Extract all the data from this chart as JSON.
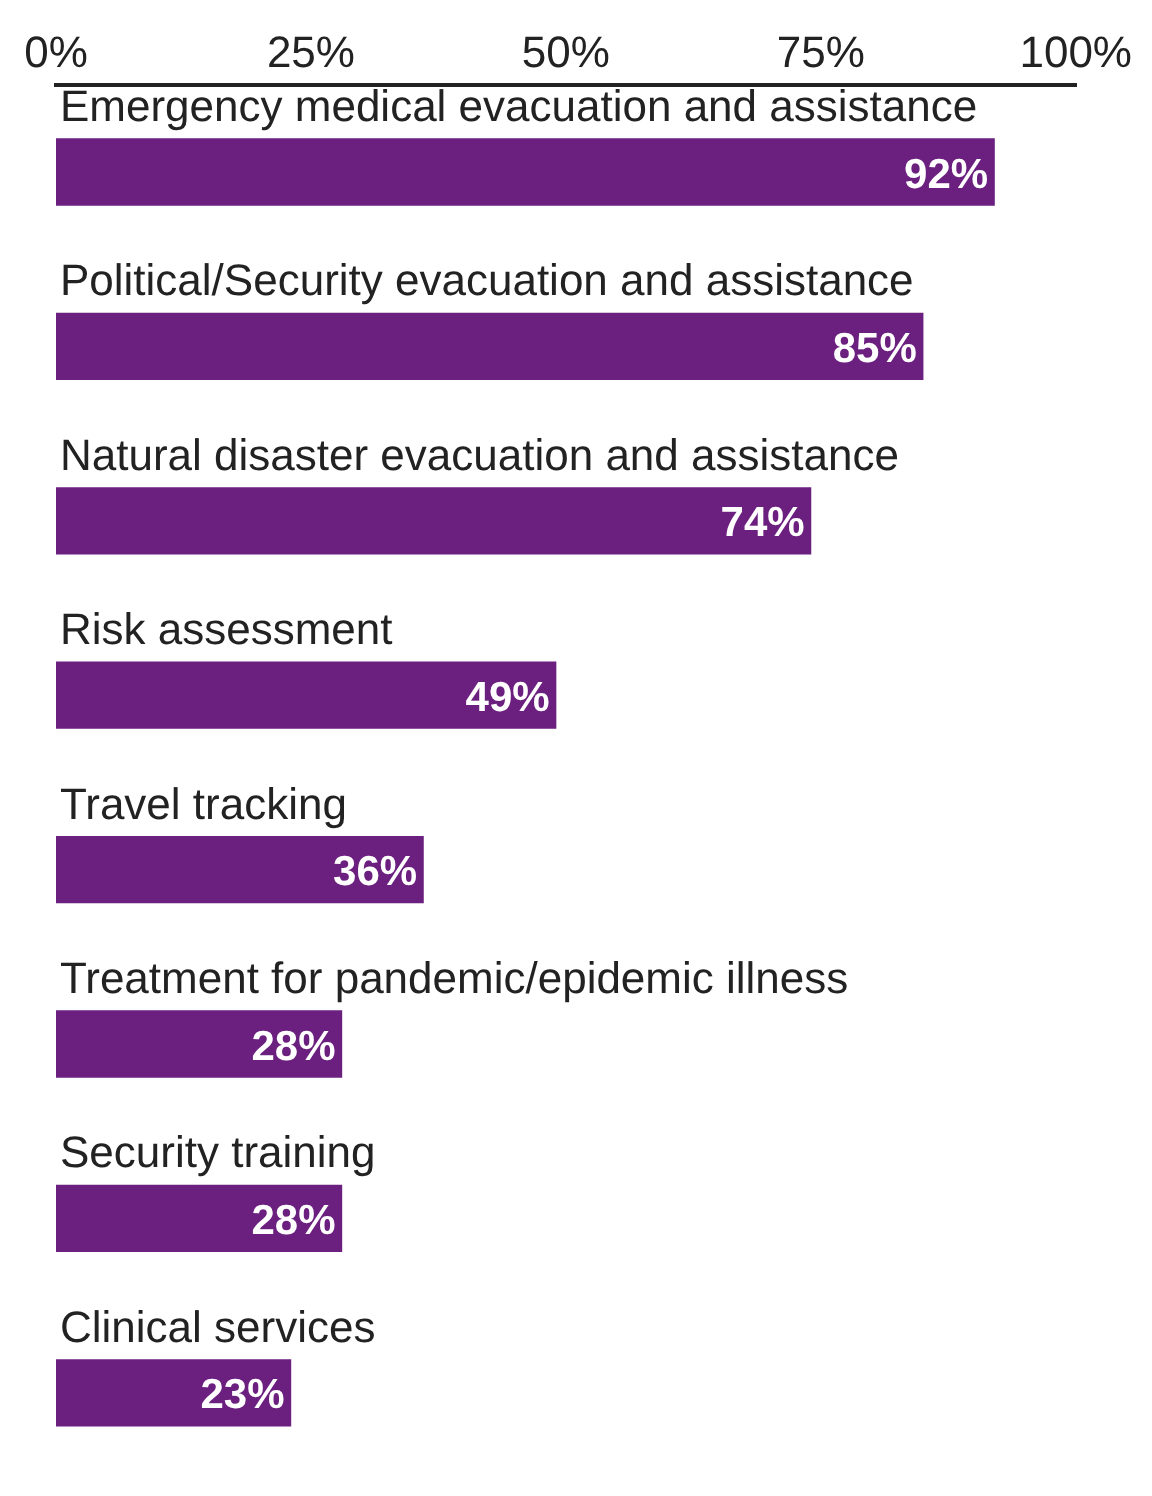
{
  "chart_data": {
    "type": "bar",
    "orientation": "horizontal",
    "categories": [
      "Emergency medical evacuation and assistance",
      "Political/Security evacuation and assistance",
      "Natural disaster evacuation and assistance",
      "Risk assessment",
      "Travel tracking",
      "Treatment for pandemic/epidemic illness",
      "Security training",
      "Clinical services"
    ],
    "values": [
      92,
      85,
      74,
      49,
      36,
      28,
      28,
      23
    ],
    "value_labels": [
      "92%",
      "85%",
      "74%",
      "49%",
      "36%",
      "28%",
      "28%",
      "23%"
    ],
    "color": "#6b1f7f",
    "xlim": [
      0,
      100
    ],
    "xticks": [
      {
        "value": 0,
        "label": "0%"
      },
      {
        "value": 25,
        "label": "25%"
      },
      {
        "value": 50,
        "label": "50%"
      },
      {
        "value": 75,
        "label": "75%"
      },
      {
        "value": 100,
        "label": "100%"
      }
    ],
    "grid": false,
    "legend": false,
    "tick_labels": "x"
  }
}
